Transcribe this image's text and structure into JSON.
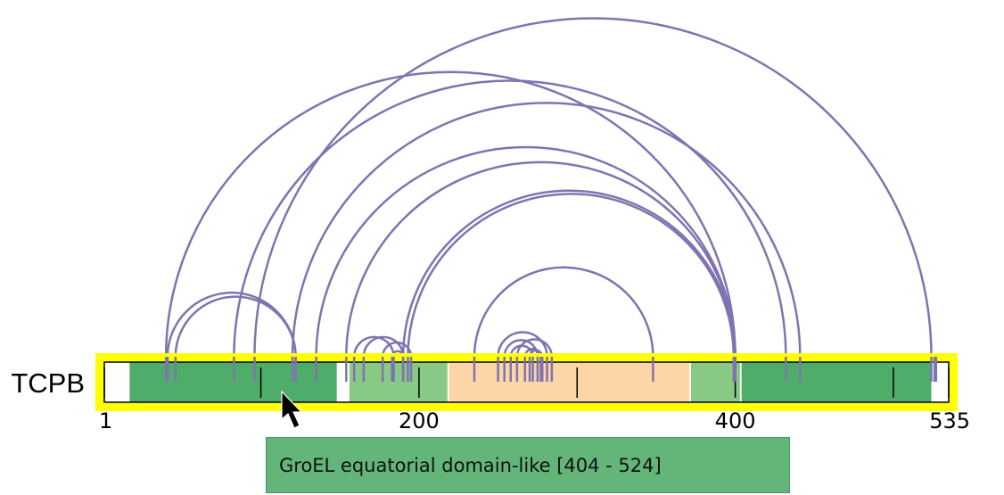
{
  "protein": {
    "name": "TCPB",
    "length": 535,
    "start": 1,
    "highlight_color": "#ffff00",
    "bar_outline_color": "#000000"
  },
  "axis": {
    "tick_labels": [
      {
        "pos": 1,
        "label": "1"
      },
      {
        "pos": 200,
        "label": "200"
      },
      {
        "pos": 400,
        "label": "400"
      },
      {
        "pos": 535,
        "label": "535"
      }
    ],
    "minor_ticks": [
      100,
      300,
      500
    ]
  },
  "domains": [
    {
      "start": 17,
      "end": 148,
      "color": "#4fad6a"
    },
    {
      "start": 156,
      "end": 218,
      "color": "#88c985"
    },
    {
      "start": 219,
      "end": 371,
      "color": "#fdd5a6"
    },
    {
      "start": 372,
      "end": 403,
      "color": "#88c985"
    },
    {
      "start": 404,
      "end": 524,
      "color": "#4fad6a"
    }
  ],
  "links_color": "#7f74b0",
  "links": [
    [
      40,
      400
    ],
    [
      46,
      122
    ],
    [
      41,
      122
    ],
    [
      83,
      432
    ],
    [
      120,
      441
    ],
    [
      96,
      524
    ],
    [
      135,
      400
    ],
    [
      154,
      400
    ],
    [
      159,
      184
    ],
    [
      165,
      190
    ],
    [
      177,
      195
    ],
    [
      183,
      190
    ],
    [
      190,
      400
    ],
    [
      193,
      399
    ],
    [
      235,
      348
    ],
    [
      250,
      281
    ],
    [
      254,
      275
    ],
    [
      258,
      272
    ],
    [
      262,
      284
    ],
    [
      270,
      278
    ],
    [
      267,
      277
    ],
    [
      526,
      527
    ]
  ],
  "tooltip": {
    "text": "GroEL equatorial domain-like [404 - 524]"
  }
}
